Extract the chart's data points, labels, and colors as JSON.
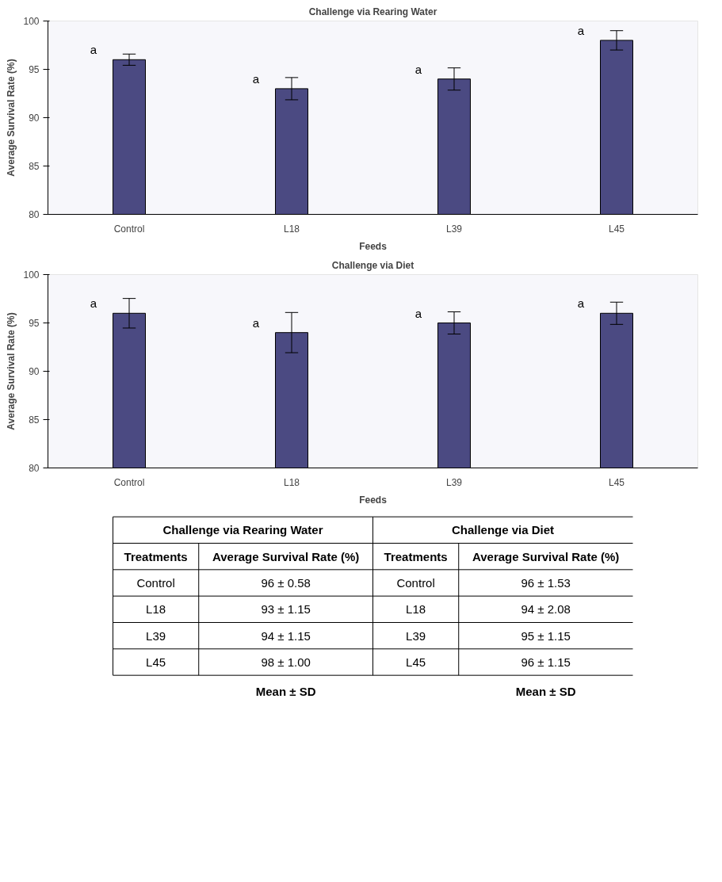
{
  "chart_data": [
    {
      "type": "bar",
      "title": "Challenge via Rearing Water",
      "xlabel": "Feeds",
      "ylabel": "Average Survival Rate (%)",
      "categories": [
        "Control",
        "L18",
        "L39",
        "L45"
      ],
      "values": [
        96,
        93,
        94,
        98
      ],
      "errors": [
        0.58,
        1.15,
        1.15,
        1.0
      ],
      "color": "#4b4a82",
      "ylim": [
        80,
        100
      ],
      "yticks": [
        80,
        85,
        90,
        95,
        100
      ],
      "annotations": [
        "a",
        "a",
        "a",
        "a"
      ]
    },
    {
      "type": "bar",
      "title": "Challenge via Diet",
      "xlabel": "Feeds",
      "ylabel": "Average Survival Rate (%)",
      "categories": [
        "Control",
        "L18",
        "L39",
        "L45"
      ],
      "values": [
        96,
        94,
        95,
        96
      ],
      "errors": [
        1.53,
        2.08,
        1.15,
        1.15
      ],
      "color": "#4b4a82",
      "ylim": [
        80,
        100
      ],
      "yticks": [
        80,
        85,
        90,
        95,
        100
      ],
      "annotations": [
        "a",
        "a",
        "a",
        "a"
      ]
    },
    {
      "type": "other",
      "annotations": [
        "Challenge via Rearing Water",
        "Challenge via Diet",
        "Treatments",
        "Average Survival Rate (%)",
        "Treatments",
        "Average Survival Rate (%)",
        "Control",
        "96 ± 0.58",
        "Control",
        "96 ± 1.53",
        "L18",
        "93 ± 1.15",
        "L18",
        "94 ± 2.08",
        "L39",
        "94 ± 1.15",
        "L39",
        "95 ± 1.15",
        "L45",
        "98 ± 1.00",
        "L45",
        "96 ± 1.15",
        "Mean ± SD",
        "Mean ± SD"
      ]
    }
  ]
}
